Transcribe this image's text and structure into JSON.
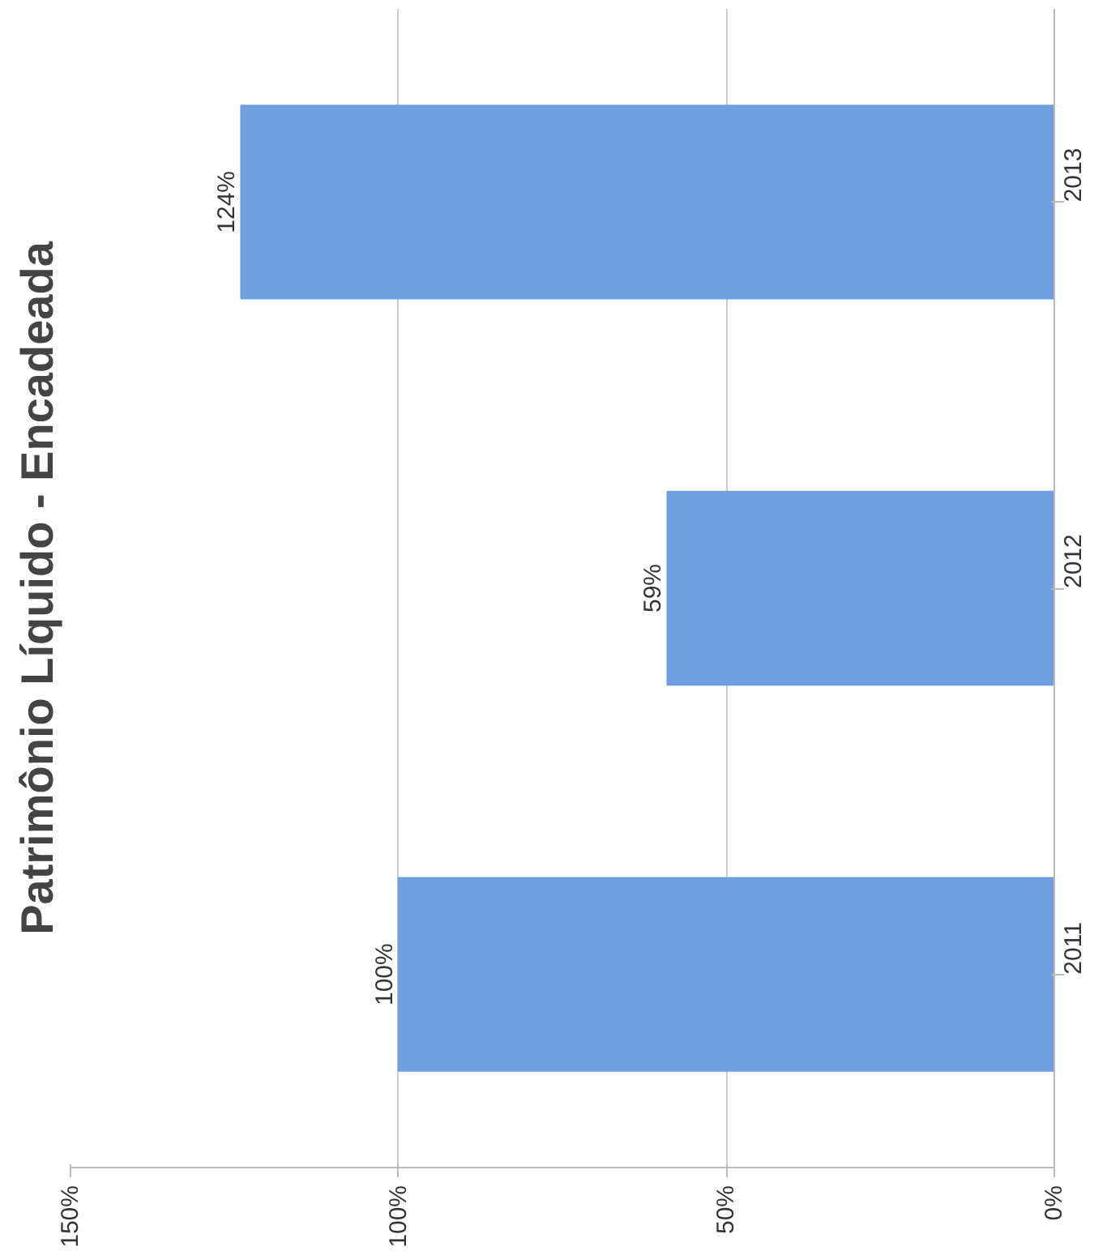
{
  "chart_data": {
    "type": "bar",
    "title": "Patrimônio Líquido - Encadeada",
    "orientation": "horizontal",
    "categories": [
      "2013",
      "2012",
      "2011"
    ],
    "values": [
      124,
      59,
      100
    ],
    "value_labels": [
      "124%",
      "59%",
      "100%"
    ],
    "color": "#6f9fe0",
    "xlim": [
      150,
      0
    ],
    "xticks": [
      {
        "value": 0,
        "label": "0%"
      },
      {
        "value": 50,
        "label": "50%"
      },
      {
        "value": 100,
        "label": "100%"
      },
      {
        "value": 150,
        "label": "150%"
      }
    ],
    "grid": "x"
  }
}
